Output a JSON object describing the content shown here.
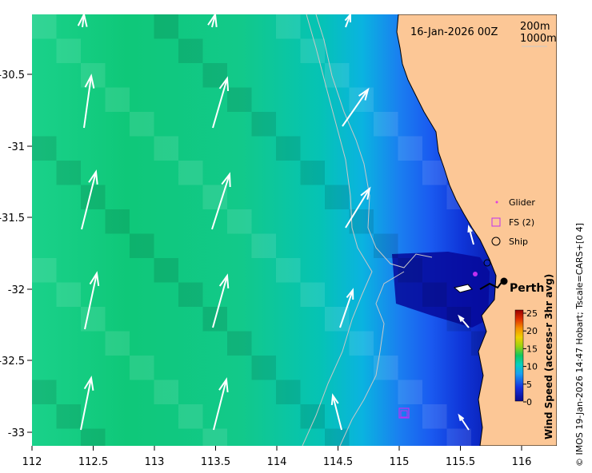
{
  "title": "16-Jan-2026 00Z",
  "scale": {
    "top": "200m",
    "bottom": "1000m"
  },
  "city_label": "Perth",
  "legend": [
    {
      "label": "Glider"
    },
    {
      "label": "FS (2)"
    },
    {
      "label": "Ship"
    }
  ],
  "colorbar": {
    "label": "Wind Speed (access-r 3hr avg)",
    "ticks": [
      "25",
      "20",
      "15",
      "10",
      "5",
      "0"
    ]
  },
  "credit": "© IMOS 19-Jan-2026 14:47 Hobart; Tscale=CARS+[0 4]",
  "axes": {
    "x_ticks": [
      "112",
      "112.5",
      "113",
      "113.5",
      "114",
      "114.5",
      "115",
      "115.5",
      "116"
    ],
    "y_ticks": [
      "-30.5",
      "-31",
      "-31.5",
      "-32",
      "-32.5",
      "-33"
    ]
  },
  "colors": {
    "land": "#fcc796",
    "ocean_far": "#00c878",
    "ocean_near": "#0000a0"
  }
}
